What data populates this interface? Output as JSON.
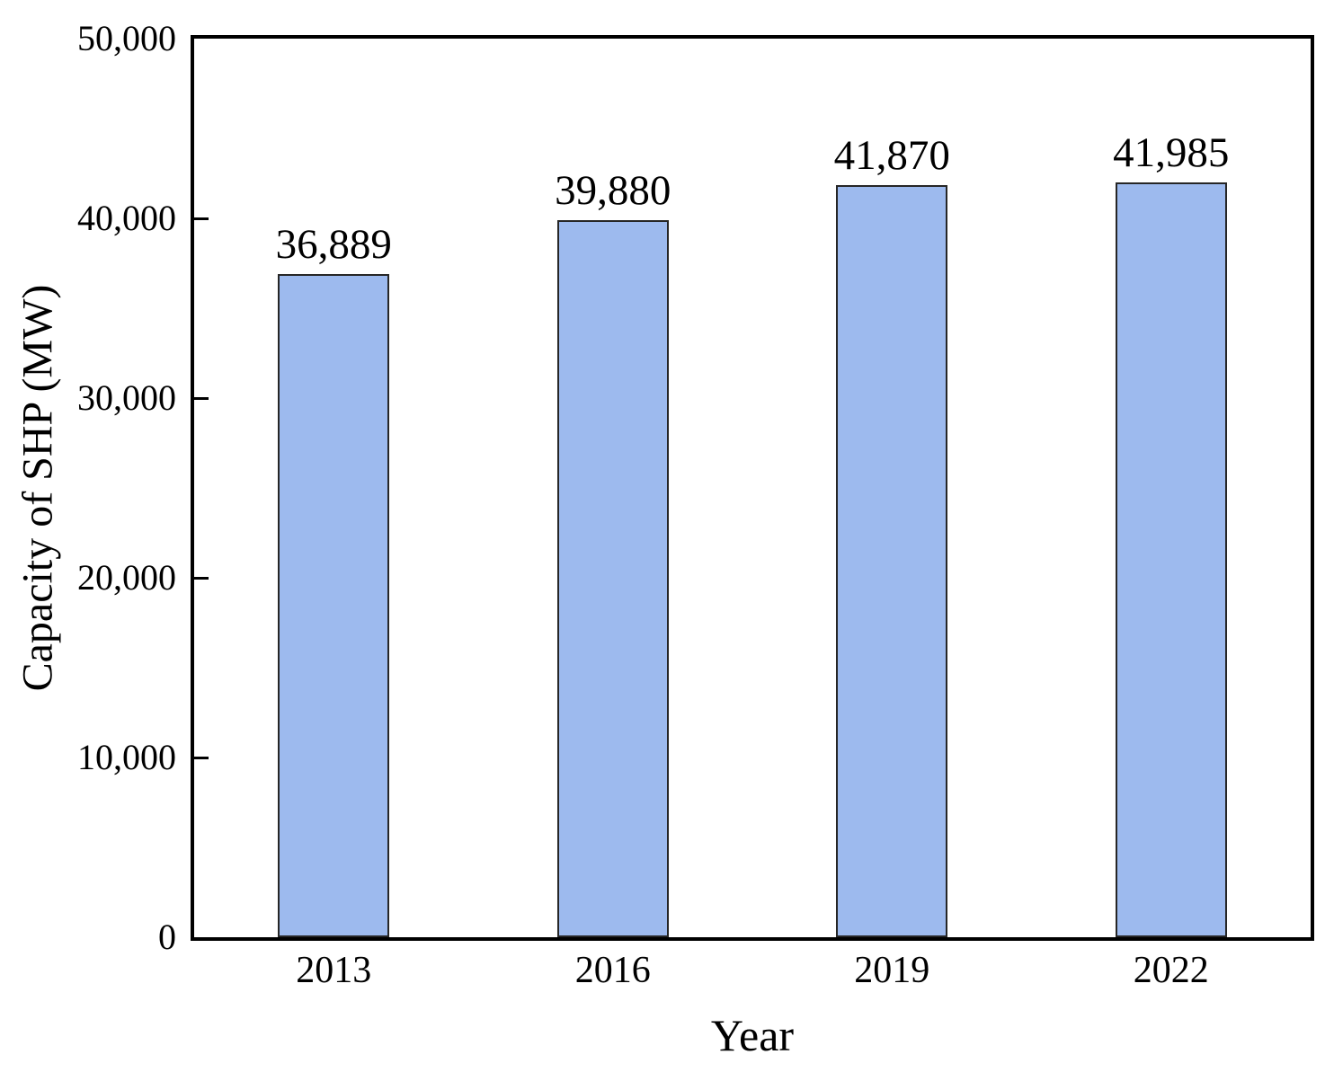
{
  "figure": {
    "background_color": "#ffffff",
    "axis_color": "#000000",
    "text_color": "#000000"
  },
  "chart_data": {
    "type": "bar",
    "title": "",
    "xlabel": "Year",
    "ylabel": "Capacity of SHP (MW)",
    "categories": [
      "2013",
      "2016",
      "2019",
      "2022"
    ],
    "values": [
      36889,
      39880,
      41870,
      41985
    ],
    "bar_labels": [
      "36,889",
      "39,880",
      "41,870",
      "41,985"
    ],
    "ylim": [
      0,
      50000
    ],
    "ytick_interval": 10000,
    "yticks": [
      0,
      10000,
      20000,
      30000,
      40000,
      50000
    ],
    "ytick_labels": [
      "0",
      "10,000",
      "20,000",
      "30,000",
      "40,000",
      "50,000"
    ],
    "grid": false,
    "legend": null,
    "bar_fill_color": "#9DBAEE",
    "bar_border_color": "#262626"
  }
}
